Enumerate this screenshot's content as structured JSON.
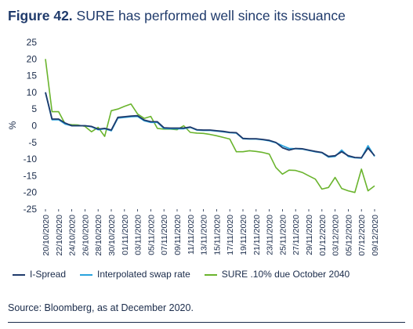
{
  "figure": {
    "number_label": "Figure 42.",
    "title": "SURE has performed well since its issuance",
    "source": "Source: Bloomberg, as at December 2020."
  },
  "chart_data": {
    "type": "line",
    "ylabel": "%",
    "ylim": [
      -25,
      25
    ],
    "yticks": [
      25,
      20,
      15,
      10,
      5,
      0,
      -5,
      -10,
      -15,
      -20,
      -25
    ],
    "xtick_labels": [
      "20/10/2020",
      "22/10/2020",
      "24/10/2020",
      "26/10/2020",
      "28/10/2020",
      "30/10/2020",
      "01/11/2020",
      "03/11/2020",
      "05/11/2020",
      "07/11/2020",
      "09/11/2020",
      "11/11/2020",
      "13/11/2020",
      "15/11/2020",
      "17/11/2020",
      "19/11/2020",
      "21/11/2020",
      "23/11/2020",
      "25/11/2020",
      "27/11/2020",
      "29/11/2020",
      "01/12/2020",
      "03/12/2020",
      "05/12/2020",
      "07/12/2020",
      "09/12/2020"
    ],
    "x": [
      "20/10/2020",
      "21/10/2020",
      "22/10/2020",
      "23/10/2020",
      "24/10/2020",
      "25/10/2020",
      "26/10/2020",
      "27/10/2020",
      "28/10/2020",
      "29/10/2020",
      "30/10/2020",
      "31/10/2020",
      "01/11/2020",
      "02/11/2020",
      "03/11/2020",
      "04/11/2020",
      "05/11/2020",
      "06/11/2020",
      "07/11/2020",
      "08/11/2020",
      "09/11/2020",
      "10/11/2020",
      "11/11/2020",
      "12/11/2020",
      "13/11/2020",
      "14/11/2020",
      "15/11/2020",
      "16/11/2020",
      "17/11/2020",
      "18/11/2020",
      "19/11/2020",
      "20/11/2020",
      "21/11/2020",
      "22/11/2020",
      "23/11/2020",
      "24/11/2020",
      "25/11/2020",
      "26/11/2020",
      "27/11/2020",
      "28/11/2020",
      "29/11/2020",
      "30/11/2020",
      "01/12/2020",
      "02/12/2020",
      "03/12/2020",
      "04/12/2020",
      "05/12/2020",
      "06/12/2020",
      "07/12/2020",
      "08/12/2020",
      "09/12/2020"
    ],
    "series": [
      {
        "name": "I-Spread",
        "color": "#1f3a6b",
        "values": [
          10,
          2,
          2,
          0.8,
          0,
          0,
          0,
          -0.2,
          -1,
          -0.8,
          -1.3,
          2.5,
          2.7,
          2.9,
          3.0,
          1.7,
          1.2,
          1.2,
          -0.6,
          -0.7,
          -0.7,
          -0.7,
          -0.4,
          -1.2,
          -1.3,
          -1.3,
          -1.5,
          -1.7,
          -2.0,
          -2.1,
          -3.8,
          -3.9,
          -3.9,
          -4.1,
          -4.4,
          -5.0,
          -6.6,
          -7.3,
          -6.8,
          -6.9,
          -7.3,
          -7.7,
          -8.0,
          -9.2,
          -9.0,
          -7.8,
          -9.0,
          -9.5,
          -9.6,
          -6.7,
          -9.0
        ]
      },
      {
        "name": "Interpolated swap rate",
        "color": "#29a3dd",
        "values": [
          10,
          1.8,
          1.8,
          0.5,
          0,
          0,
          0,
          -0.3,
          -1.2,
          -0.9,
          -1.5,
          2.3,
          2.5,
          2.7,
          2.8,
          1.5,
          1.0,
          1.0,
          -0.8,
          -0.9,
          -0.9,
          -0.9,
          -0.5,
          -1.3,
          -1.4,
          -1.4,
          -1.6,
          -1.8,
          -2.1,
          -2.2,
          -3.9,
          -4.0,
          -4.0,
          -4.2,
          -4.5,
          -5.1,
          -6.0,
          -6.8,
          -6.9,
          -7.0,
          -7.4,
          -7.8,
          -8.1,
          -9.4,
          -9.2,
          -7.3,
          -9.2,
          -9.6,
          -9.7,
          -6.0,
          -9.2
        ]
      },
      {
        "name": "SURE .10% due October 2040",
        "color": "#6ab42d",
        "values": [
          20,
          4.2,
          4.2,
          0.5,
          0.3,
          0.2,
          -0.2,
          -1.8,
          -0.5,
          -3.2,
          4.5,
          5.0,
          5.8,
          6.5,
          3.5,
          2.2,
          2.8,
          -0.8,
          -1.0,
          -1.0,
          -1.2,
          0.0,
          -2.0,
          -2.2,
          -2.3,
          -2.6,
          -3.0,
          -3.5,
          -4.0,
          -7.8,
          -7.8,
          -7.5,
          -7.7,
          -8.0,
          -8.5,
          -12.5,
          -14.5,
          -13.3,
          -13.4,
          -14.0,
          -15.0,
          -16.0,
          -19.0,
          -18.5,
          -15.5,
          -18.8,
          -19.5,
          -20.0,
          -13.0,
          -19.5,
          -18.0
        ]
      }
    ],
    "legend_position": "bottom",
    "grid": false
  }
}
